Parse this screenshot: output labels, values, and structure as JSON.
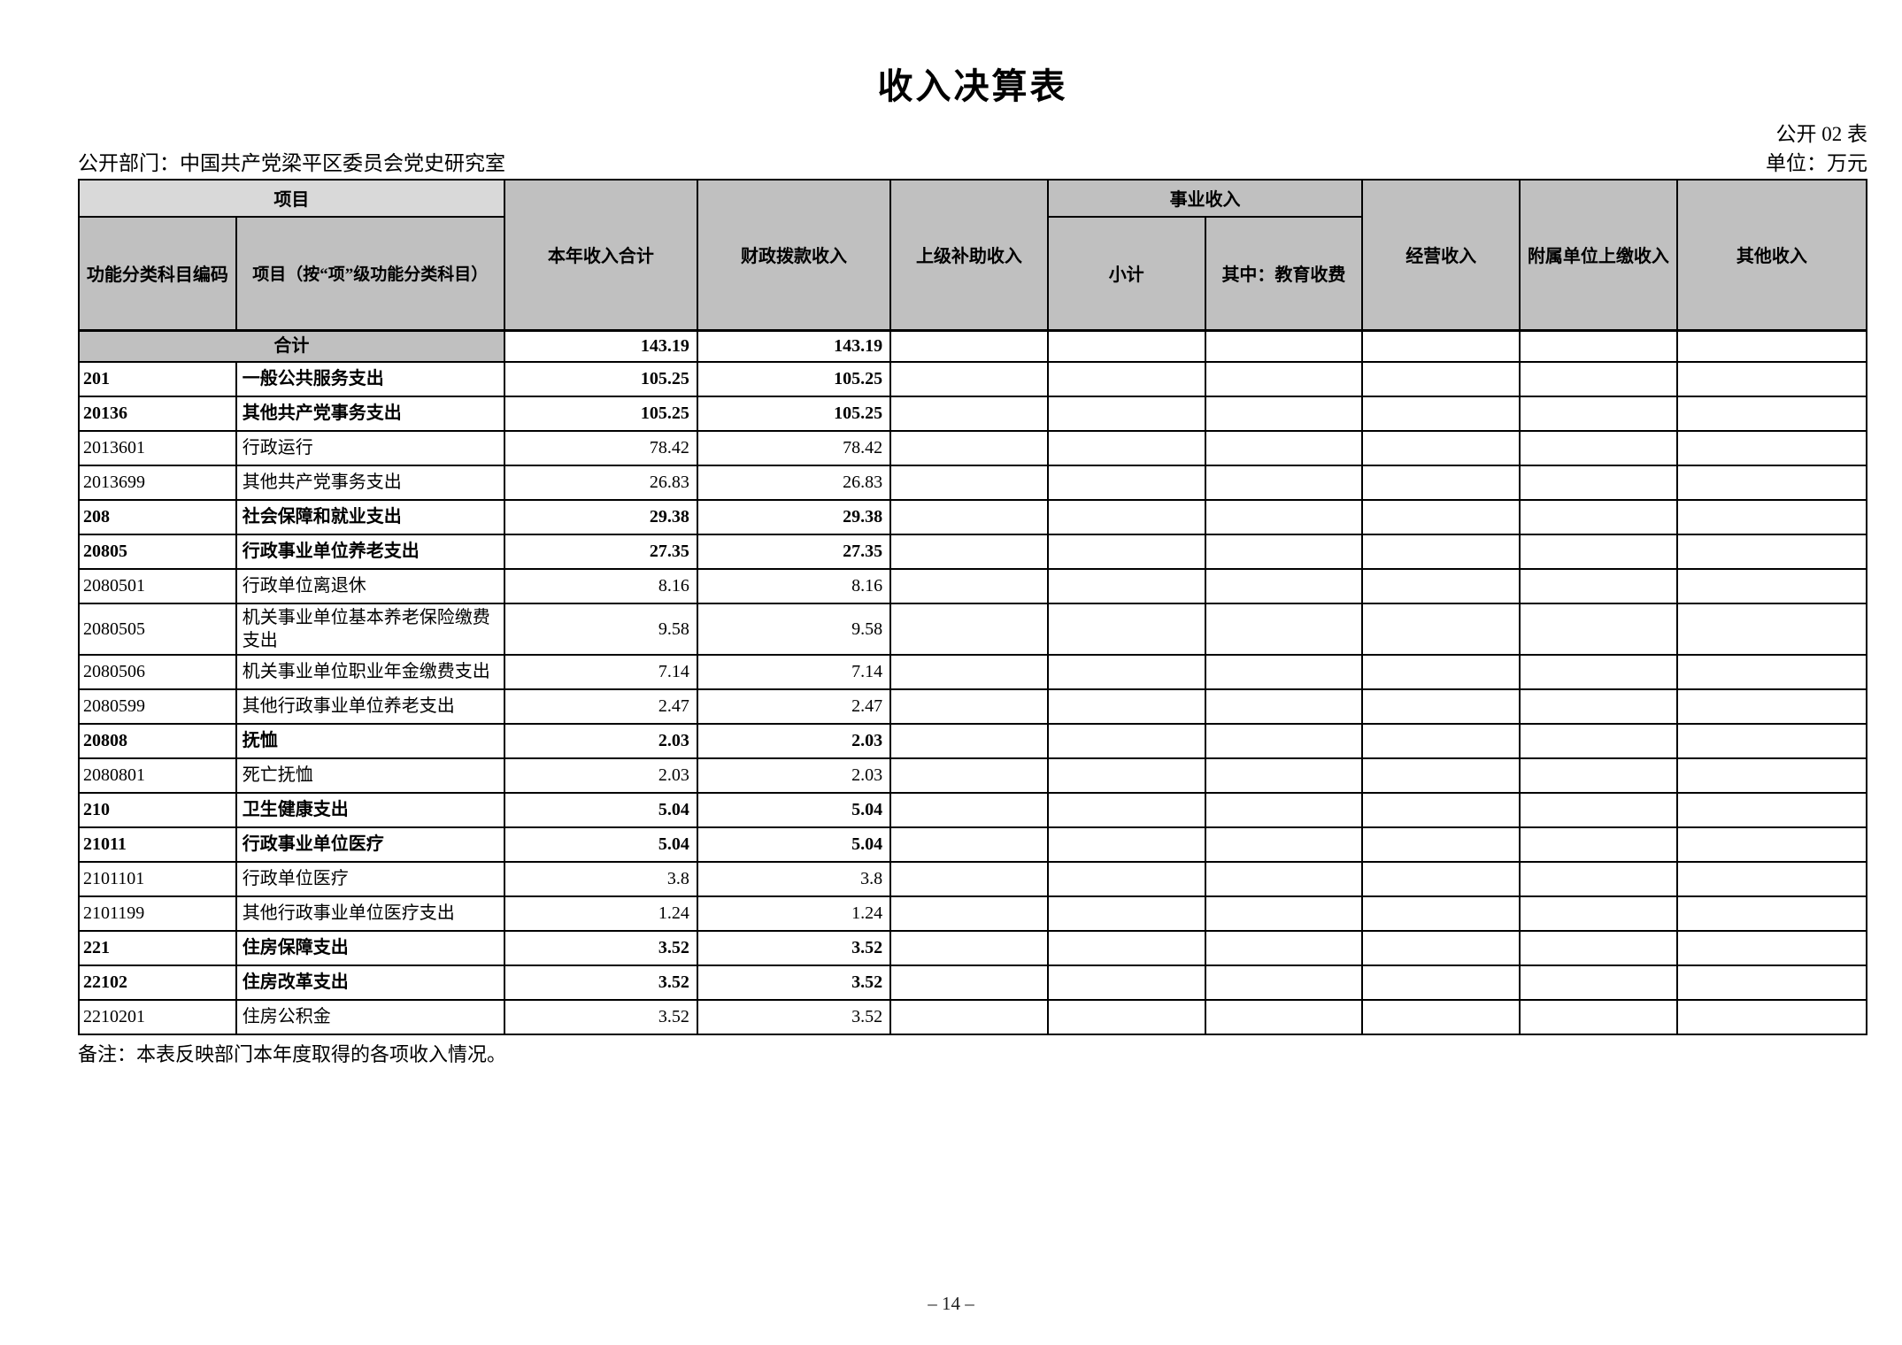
{
  "page": {
    "title": "收入决算表",
    "table_code": "公开 02 表",
    "department": "公开部门：中国共产党梁平区委员会党史研究室",
    "unit": "单位：万元",
    "note": "备注：本表反映部门本年度取得的各项收入情况。",
    "page_number": "– 14 –"
  },
  "colors": {
    "header_bg": "#c0c0c0",
    "project_header_bg": "#d9d9d9",
    "border": "#000000"
  },
  "table": {
    "header": {
      "project_group": "项目",
      "code": "功能分类科目编码",
      "item": "项目（按“项”级功能分类科目）",
      "total": "本年收入合计",
      "fiscal": "财政拨款收入",
      "superior": "上级补助收入",
      "business_group": "事业收入",
      "subtotal": "小计",
      "education": "其中：教育收费",
      "operating": "经营收入",
      "affiliated": "附属单位上缴收入",
      "other": "其他收入"
    },
    "rows": [
      {
        "summary": true,
        "bold": true,
        "code": "",
        "item": "合计",
        "total": "143.19",
        "fiscal": "143.19"
      },
      {
        "summary": false,
        "bold": true,
        "code": "201",
        "item": "一般公共服务支出",
        "total": "105.25",
        "fiscal": "105.25"
      },
      {
        "summary": false,
        "bold": true,
        "code": "20136",
        "item": "其他共产党事务支出",
        "total": "105.25",
        "fiscal": "105.25"
      },
      {
        "summary": false,
        "bold": false,
        "code": "2013601",
        "item": "行政运行",
        "total": "78.42",
        "fiscal": "78.42"
      },
      {
        "summary": false,
        "bold": false,
        "code": "2013699",
        "item": "其他共产党事务支出",
        "total": "26.83",
        "fiscal": "26.83"
      },
      {
        "summary": false,
        "bold": true,
        "code": "208",
        "item": "社会保障和就业支出",
        "total": "29.38",
        "fiscal": "29.38"
      },
      {
        "summary": false,
        "bold": true,
        "code": "20805",
        "item": "行政事业单位养老支出",
        "total": "27.35",
        "fiscal": "27.35"
      },
      {
        "summary": false,
        "bold": false,
        "code": "2080501",
        "item": "行政单位离退休",
        "total": "8.16",
        "fiscal": "8.16"
      },
      {
        "summary": false,
        "bold": false,
        "code": "2080505",
        "item": "机关事业单位基本养老保险缴费支出",
        "total": "9.58",
        "fiscal": "9.58"
      },
      {
        "summary": false,
        "bold": false,
        "code": "2080506",
        "item": "机关事业单位职业年金缴费支出",
        "total": "7.14",
        "fiscal": "7.14"
      },
      {
        "summary": false,
        "bold": false,
        "code": "2080599",
        "item": "其他行政事业单位养老支出",
        "total": "2.47",
        "fiscal": "2.47"
      },
      {
        "summary": false,
        "bold": true,
        "code": "20808",
        "item": "抚恤",
        "total": "2.03",
        "fiscal": "2.03"
      },
      {
        "summary": false,
        "bold": false,
        "code": "2080801",
        "item": "死亡抚恤",
        "total": "2.03",
        "fiscal": "2.03"
      },
      {
        "summary": false,
        "bold": true,
        "code": "210",
        "item": "卫生健康支出",
        "total": "5.04",
        "fiscal": "5.04"
      },
      {
        "summary": false,
        "bold": true,
        "code": "21011",
        "item": "行政事业单位医疗",
        "total": "5.04",
        "fiscal": "5.04"
      },
      {
        "summary": false,
        "bold": false,
        "code": "2101101",
        "item": "行政单位医疗",
        "total": "3.8",
        "fiscal": "3.8"
      },
      {
        "summary": false,
        "bold": false,
        "code": "2101199",
        "item": "其他行政事业单位医疗支出",
        "total": "1.24",
        "fiscal": "1.24"
      },
      {
        "summary": false,
        "bold": true,
        "code": "221",
        "item": "住房保障支出",
        "total": "3.52",
        "fiscal": "3.52"
      },
      {
        "summary": false,
        "bold": true,
        "code": "22102",
        "item": "住房改革支出",
        "total": "3.52",
        "fiscal": "3.52"
      },
      {
        "summary": false,
        "bold": false,
        "code": "2210201",
        "item": "住房公积金",
        "total": "3.52",
        "fiscal": "3.52"
      }
    ]
  }
}
